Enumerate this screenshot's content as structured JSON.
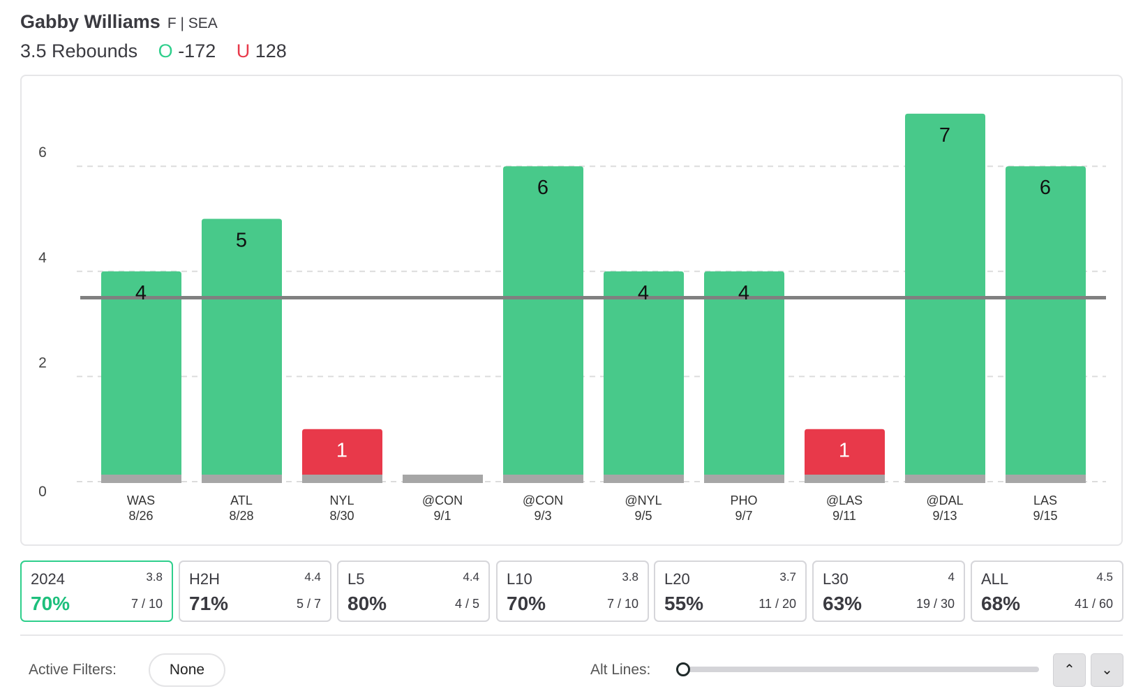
{
  "header": {
    "player": "Gabby Williams",
    "position_team": "F | SEA",
    "line_label": "3.5 Rebounds",
    "over_symbol": "O",
    "over_odds": "-172",
    "under_symbol": "U",
    "under_odds": "128"
  },
  "colors": {
    "over": "#48c98a",
    "under": "#e8394a",
    "line": "#808080",
    "base": "#a6a6a6"
  },
  "chart_data": {
    "type": "bar",
    "categories": [
      "WAS 8/26",
      "ATL 8/28",
      "NYL 8/30",
      "@CON 9/1",
      "@CON 9/3",
      "@NYL 9/5",
      "PHO 9/7",
      "@LAS 9/11",
      "@DAL 9/13",
      "LAS 9/15"
    ],
    "opponents": [
      "WAS",
      "ATL",
      "NYL",
      "@CON",
      "@CON",
      "@NYL",
      "PHO",
      "@LAS",
      "@DAL",
      "LAS"
    ],
    "dates": [
      "8/26",
      "8/28",
      "8/30",
      "9/1",
      "9/3",
      "9/5",
      "9/7",
      "9/11",
      "9/13",
      "9/15"
    ],
    "values": [
      4,
      5,
      1,
      0,
      6,
      4,
      4,
      1,
      7,
      6
    ],
    "data_labels": [
      "4",
      "5",
      "1",
      "",
      "6",
      "4",
      "4",
      "1",
      "7",
      "6"
    ],
    "line": 3.5,
    "yticks": [
      "0",
      "2",
      "4",
      "6"
    ],
    "ylim": [
      0,
      7
    ],
    "grid": true
  },
  "splits": [
    {
      "label": "2024",
      "avg": "3.8",
      "pct": "70%",
      "frac": "7 / 10",
      "active": true
    },
    {
      "label": "H2H",
      "avg": "4.4",
      "pct": "71%",
      "frac": "5 / 7"
    },
    {
      "label": "L5",
      "avg": "4.4",
      "pct": "80%",
      "frac": "4 / 5"
    },
    {
      "label": "L10",
      "avg": "3.8",
      "pct": "70%",
      "frac": "7 / 10"
    },
    {
      "label": "L20",
      "avg": "3.7",
      "pct": "55%",
      "frac": "11 / 20"
    },
    {
      "label": "L30",
      "avg": "4",
      "pct": "63%",
      "frac": "19 / 30"
    },
    {
      "label": "ALL",
      "avg": "4.5",
      "pct": "68%",
      "frac": "41 / 60"
    }
  ],
  "footer": {
    "active_filters_label": "Active Filters:",
    "filter_value": "None",
    "alt_lines_label": "Alt Lines:",
    "alt_lines_level": 0,
    "up_icon": "chevron-up-icon",
    "down_icon": "chevron-down-icon",
    "up_glyph": "⌃",
    "down_glyph": "⌄"
  }
}
